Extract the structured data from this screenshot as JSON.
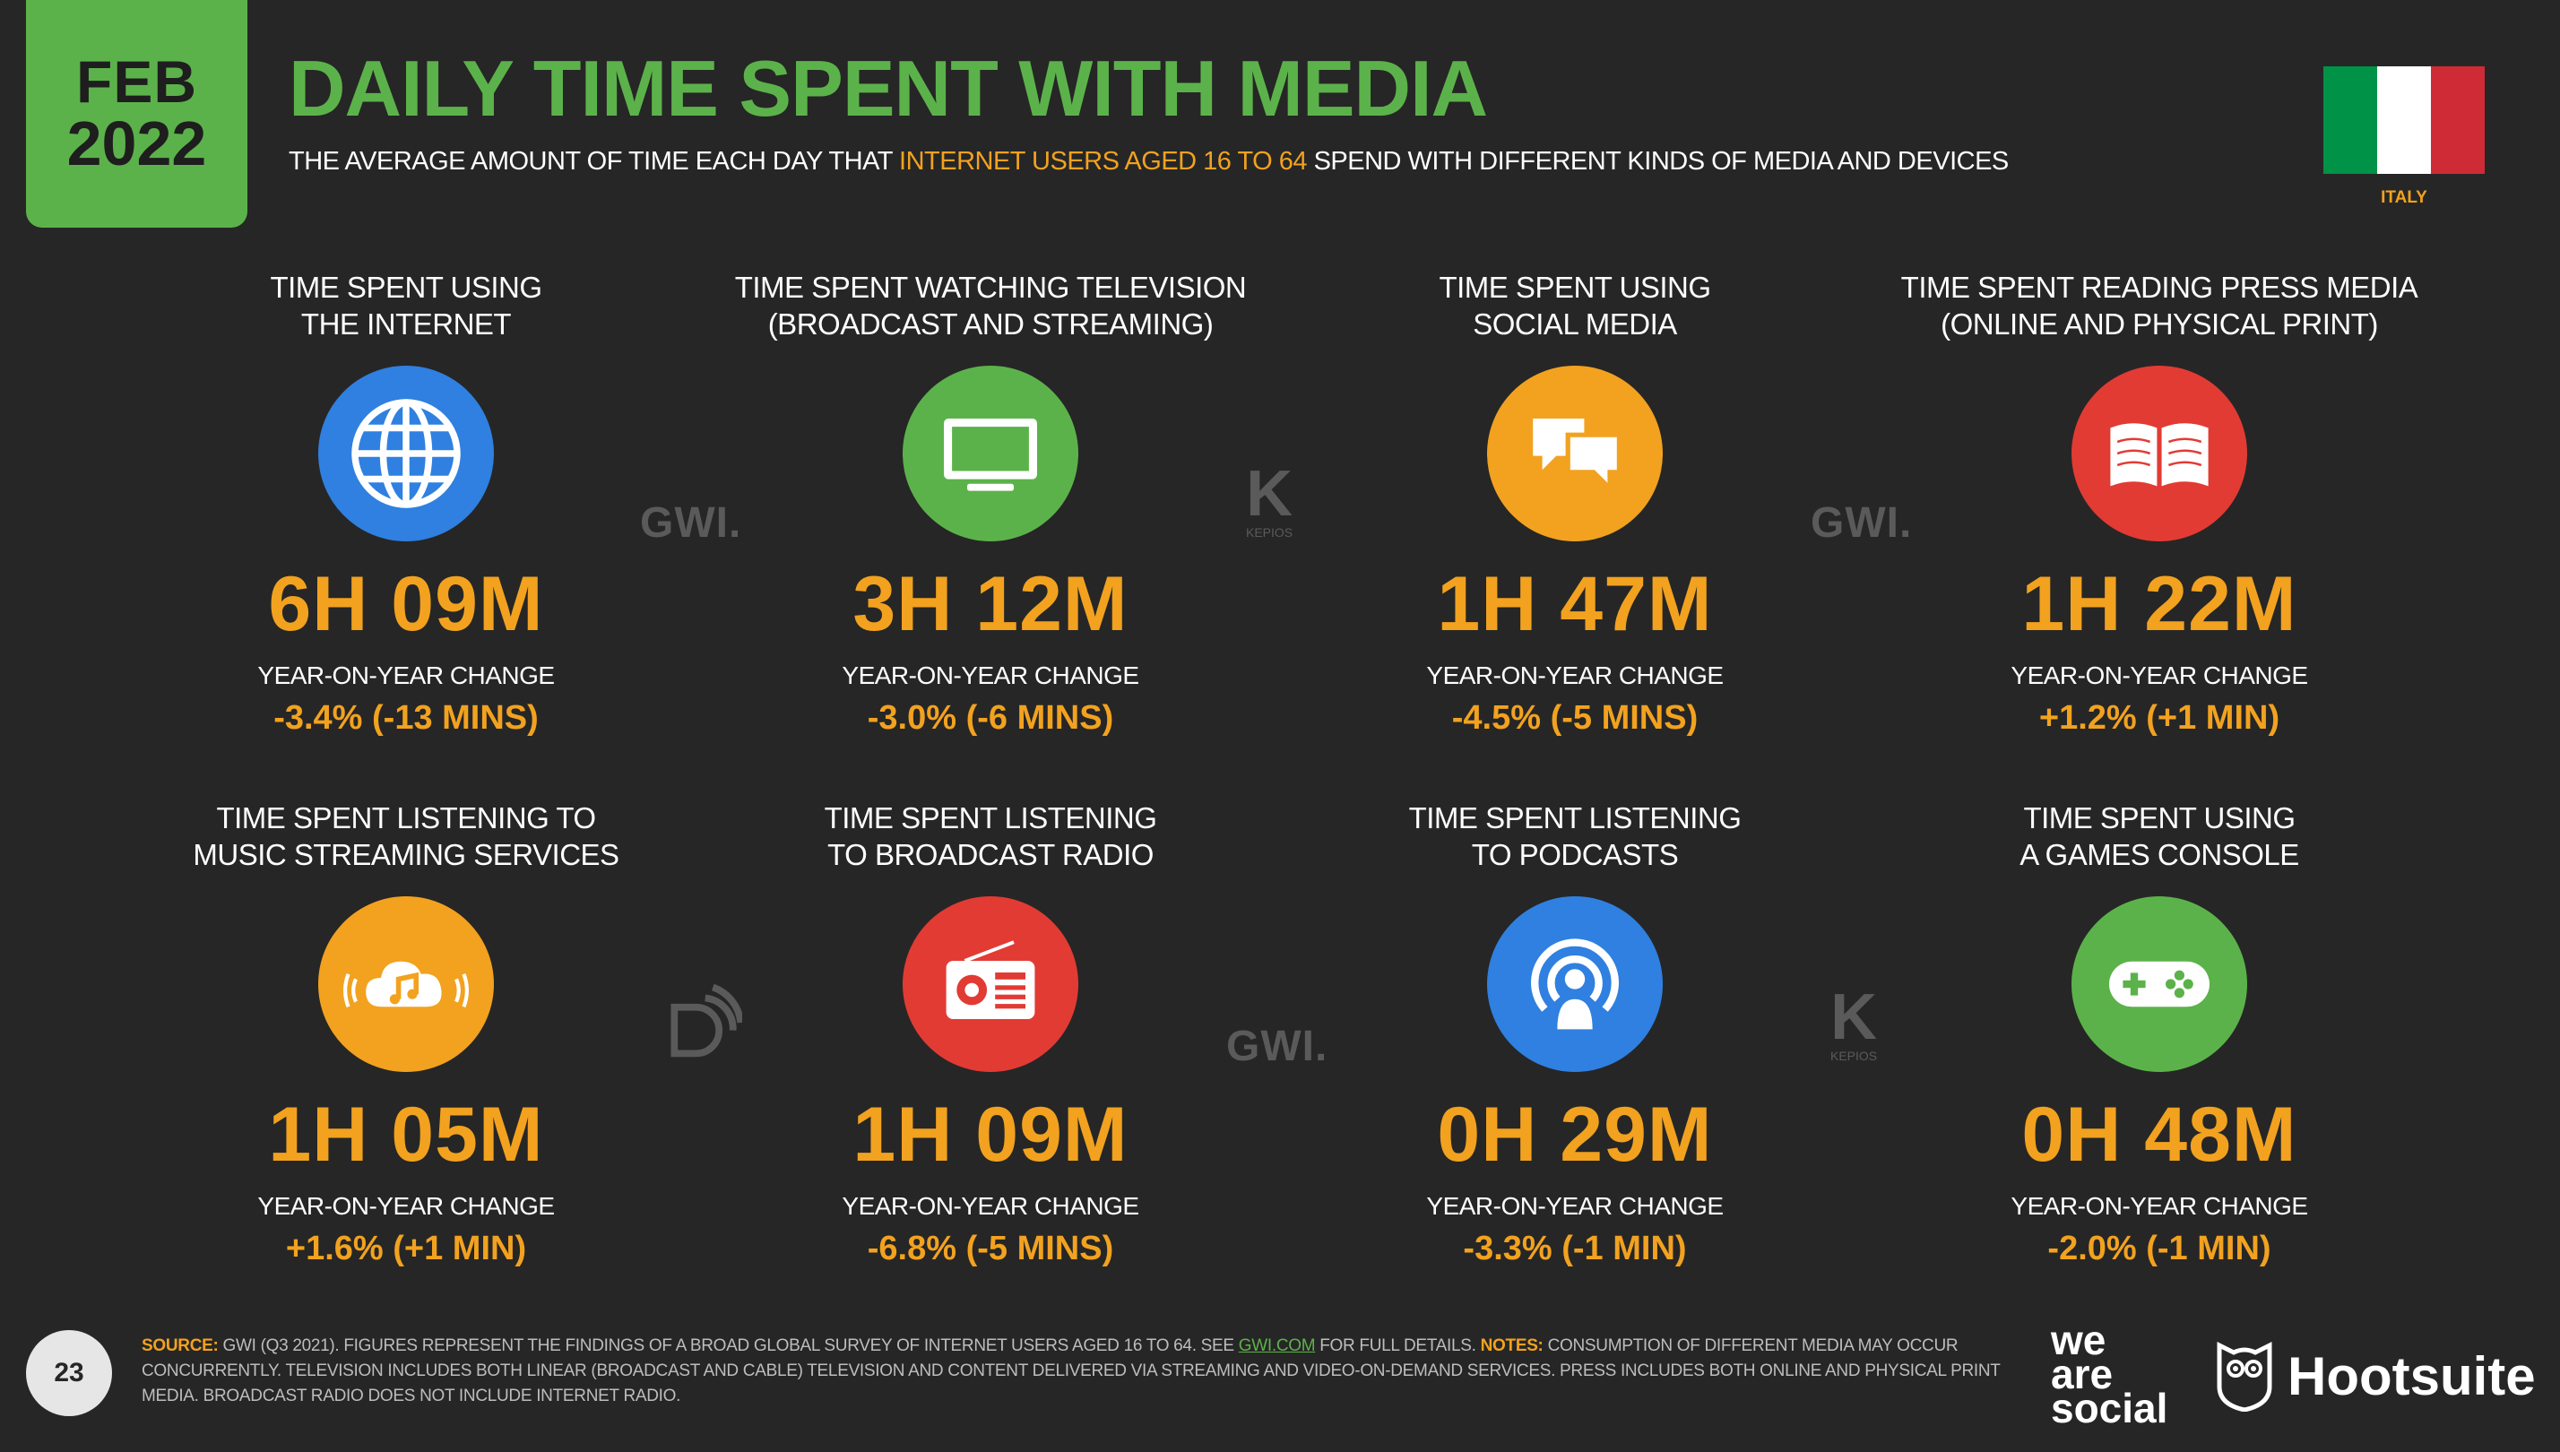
{
  "header": {
    "month": "FEB",
    "year": "2022",
    "title": "DAILY TIME SPENT WITH MEDIA",
    "subtitle_pre": "THE AVERAGE AMOUNT OF TIME EACH DAY THAT ",
    "subtitle_highlight": "INTERNET USERS AGED 16 TO 64",
    "subtitle_post": " SPEND WITH DIFFERENT KINDS OF MEDIA AND DEVICES",
    "country": "ITALY"
  },
  "colors": {
    "green": "#5cb24a",
    "orange": "#f2a21f",
    "blue": "#2f80e0",
    "red": "#e23b34",
    "flag": [
      "#009246",
      "#ffffff",
      "#ce2b37"
    ]
  },
  "yoy_label": "YEAR-ON-YEAR CHANGE",
  "cards": [
    {
      "label_1": "TIME SPENT USING",
      "label_2": "THE INTERNET",
      "icon": "globe-icon",
      "color": "#2f80e0",
      "value": "6H 09M",
      "change": "-3.4% (-13 MINS)"
    },
    {
      "label_1": "TIME SPENT WATCHING TELEVISION",
      "label_2": "(BROADCAST AND STREAMING)",
      "icon": "television-icon",
      "color": "#5cb24a",
      "value": "3H 12M",
      "change": "-3.0% (-6 MINS)"
    },
    {
      "label_1": "TIME SPENT USING",
      "label_2": "SOCIAL MEDIA",
      "icon": "speech-bubbles-icon",
      "color": "#f2a21f",
      "value": "1H 47M",
      "change": "-4.5% (-5 MINS)"
    },
    {
      "label_1": "TIME SPENT READING PRESS MEDIA",
      "label_2": "(ONLINE AND PHYSICAL PRINT)",
      "icon": "open-book-icon",
      "color": "#e23b34",
      "value": "1H 22M",
      "change": "+1.2% (+1 MIN)"
    },
    {
      "label_1": "TIME SPENT LISTENING TO",
      "label_2": "MUSIC STREAMING SERVICES",
      "icon": "music-cloud-icon",
      "color": "#f2a21f",
      "value": "1H 05M",
      "change": "+1.6% (+1 MIN)"
    },
    {
      "label_1": "TIME SPENT LISTENING",
      "label_2": "TO BROADCAST RADIO",
      "icon": "radio-icon",
      "color": "#e23b34",
      "value": "1H 09M",
      "change": "-6.8% (-5 MINS)"
    },
    {
      "label_1": "TIME SPENT LISTENING",
      "label_2": "TO PODCASTS",
      "icon": "podcast-icon",
      "color": "#2f80e0",
      "value": "0H 29M",
      "change": "-3.3% (-1 MIN)"
    },
    {
      "label_1": "TIME SPENT USING",
      "label_2": "A GAMES CONSOLE",
      "icon": "gamepad-icon",
      "color": "#5cb24a",
      "value": "0H 48M",
      "change": "-2.0% (-1 MIN)"
    }
  ],
  "watermarks": {
    "gwi": "GWI.",
    "kepios": "KEPIOS"
  },
  "footer": {
    "page_number": "23",
    "source_label": "SOURCE:",
    "source_text": " GWI (Q3 2021). FIGURES REPRESENT THE FINDINGS OF A BROAD GLOBAL SURVEY OF INTERNET USERS AGED 16 TO 64. SEE ",
    "source_link": "GWI.COM",
    "source_after": " FOR FULL DETAILS. ",
    "notes_label": "NOTES:",
    "notes_text": " CONSUMPTION OF DIFFERENT MEDIA MAY OCCUR CONCURRENTLY. TELEVISION INCLUDES BOTH LINEAR (BROADCAST AND CABLE) TELEVISION AND CONTENT DELIVERED VIA STREAMING AND VIDEO-ON-DEMAND SERVICES. PRESS INCLUDES BOTH ONLINE AND PHYSICAL PRINT MEDIA. BROADCAST RADIO DOES NOT INCLUDE INTERNET RADIO."
  },
  "logos": {
    "was_1": "we",
    "was_2": "are",
    "was_3": "social",
    "hootsuite": "Hootsuite"
  }
}
